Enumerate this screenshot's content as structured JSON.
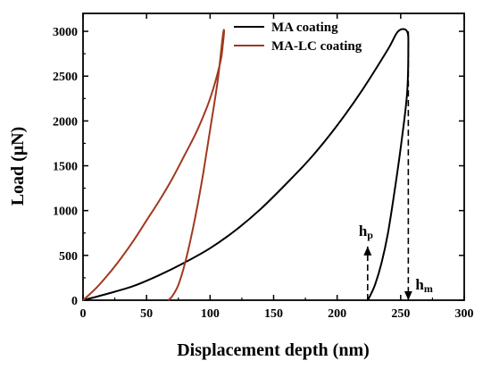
{
  "chart_data": {
    "type": "line",
    "title": "",
    "xlabel": "Displacement depth (nm)",
    "ylabel": "Load (μN)",
    "xlim": [
      0,
      300
    ],
    "ylim": [
      0,
      3200
    ],
    "xticks": [
      0,
      50,
      100,
      150,
      200,
      250,
      300
    ],
    "yticks": [
      0,
      500,
      1000,
      1500,
      2000,
      2500,
      3000
    ],
    "xtick_labels": [
      "0",
      "50",
      "100",
      "150",
      "200",
      "250",
      "300"
    ],
    "ytick_labels": [
      "0",
      "500",
      "1000",
      "1500",
      "2000",
      "2500",
      "3000"
    ],
    "grid": false,
    "legend_position": "top-left",
    "series": [
      {
        "name": "MA coating",
        "color": "#000000",
        "x": [
          0,
          20,
          40,
          60,
          80,
          100,
          120,
          140,
          160,
          180,
          200,
          220,
          240,
          248,
          255,
          256,
          255,
          250,
          245,
          240,
          235,
          230,
          226,
          224
        ],
        "y": [
          0,
          75,
          160,
          280,
          420,
          580,
          780,
          1020,
          1300,
          1600,
          1950,
          2350,
          2800,
          3000,
          3000,
          2800,
          2300,
          1700,
          1200,
          750,
          420,
          180,
          50,
          0
        ]
      },
      {
        "name": "MA-LC coating",
        "color": "#a0391f",
        "x": [
          0,
          10,
          20,
          30,
          40,
          50,
          60,
          70,
          80,
          90,
          100,
          108,
          110,
          111,
          110,
          106,
          100,
          95,
          90,
          85,
          80,
          75,
          70,
          67
        ],
        "y": [
          0,
          130,
          290,
          470,
          670,
          890,
          1110,
          1350,
          1620,
          1900,
          2250,
          2650,
          2850,
          3000,
          2950,
          2450,
          1900,
          1450,
          1050,
          700,
          400,
          170,
          40,
          0
        ]
      }
    ],
    "annotations": [
      {
        "label": "hp",
        "main": "h",
        "sub": "p",
        "x": 224,
        "y_from": 0,
        "y_to": 600
      },
      {
        "label": "hm",
        "main": "h",
        "sub": "m",
        "x": 256,
        "y_from": 3000,
        "y_to": 0
      }
    ]
  }
}
